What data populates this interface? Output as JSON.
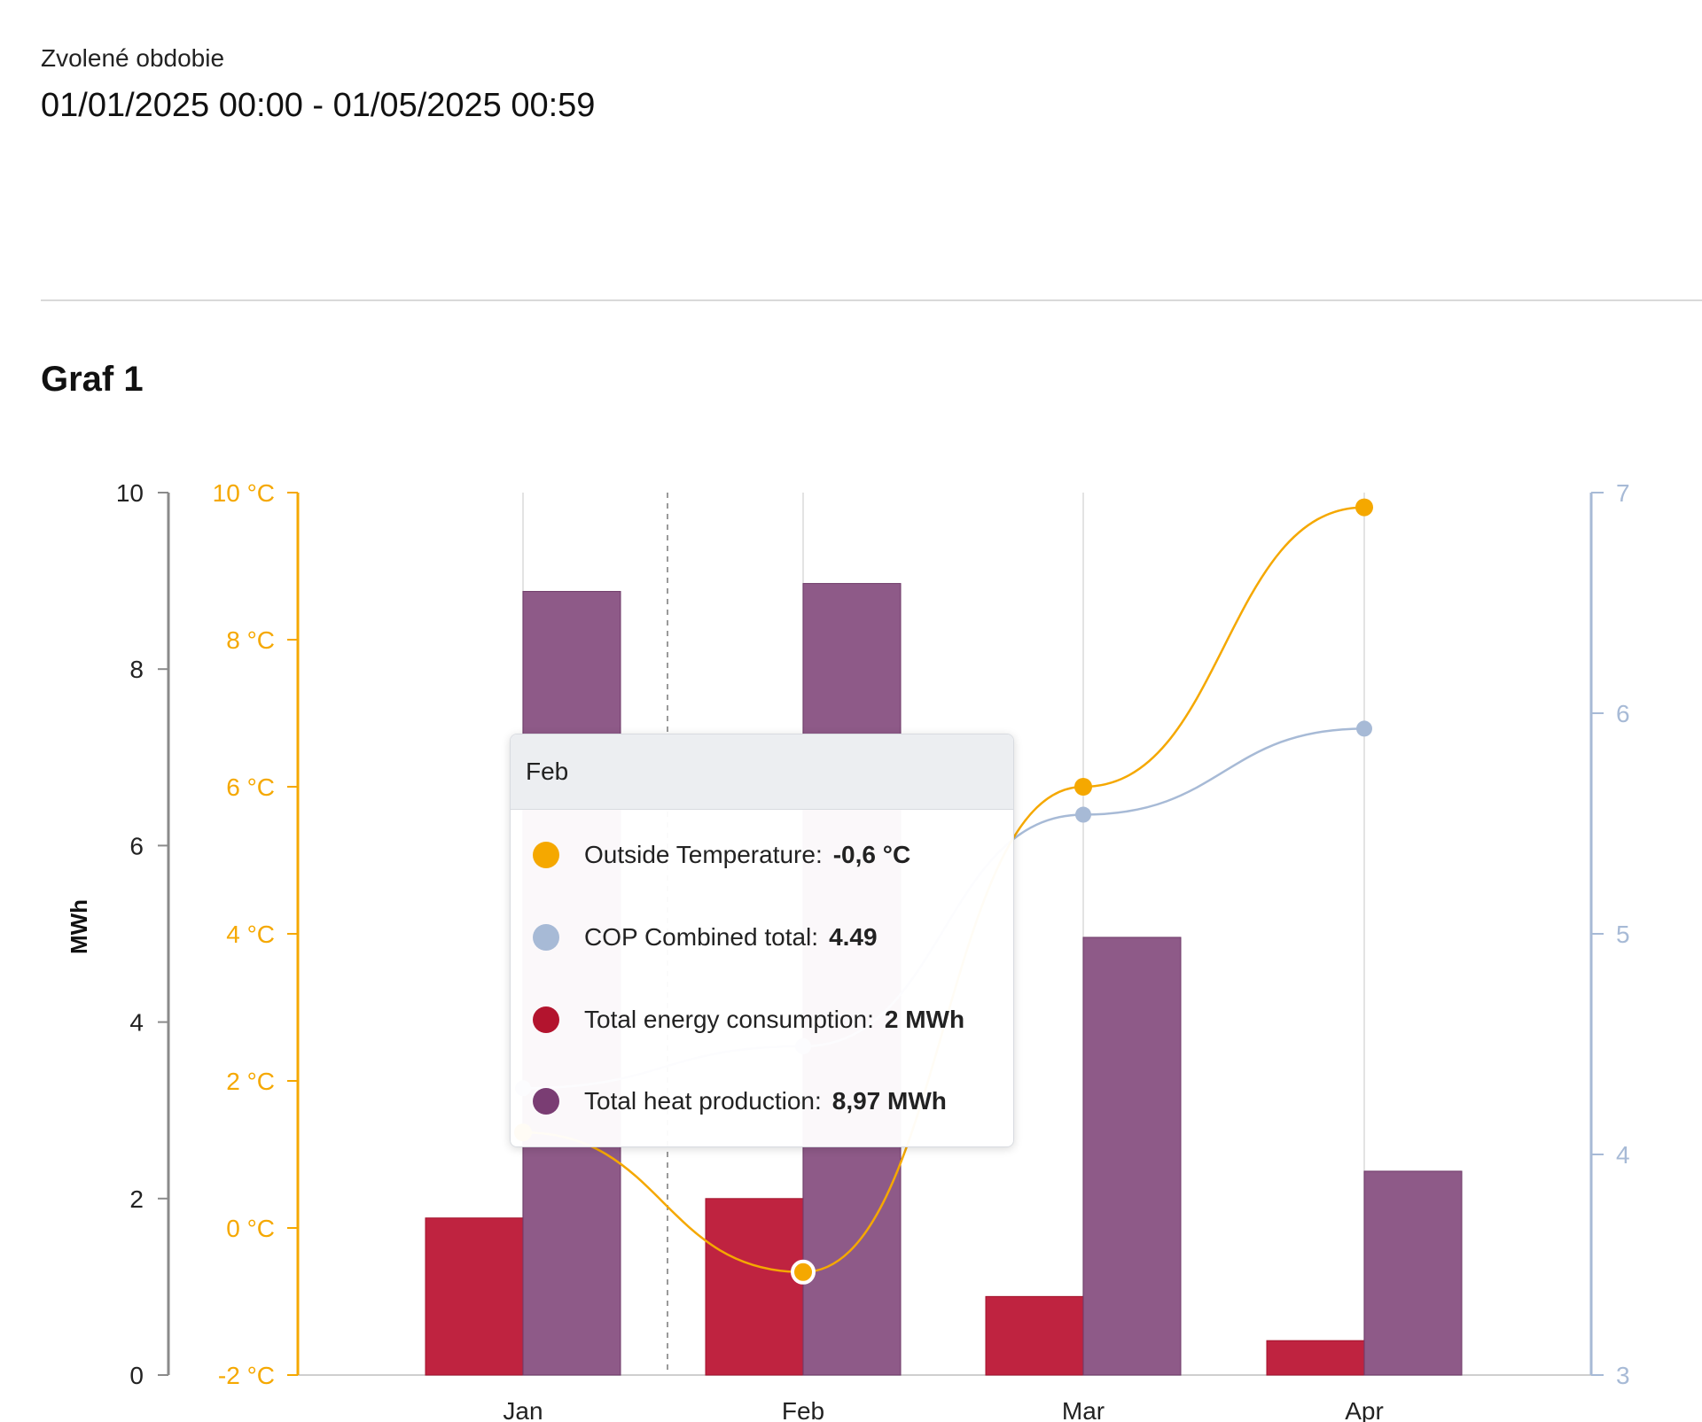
{
  "header": {
    "period_label": "Zvolené obdobie",
    "period_value": "01/01/2025 00:00 - 01/05/2025 00:59"
  },
  "graph": {
    "title": "Graf 1"
  },
  "colors": {
    "temperature": "#f5a800",
    "cop": "#a7bad6",
    "consumption": "#bf2340",
    "production": "#8e5a88",
    "mwh_axis": "#8a8a8a",
    "grid": "#e3e3e3"
  },
  "chart_data": {
    "type": "bar",
    "categories": [
      "Jan",
      "Feb",
      "Mar",
      "Apr"
    ],
    "ylabel": "MWh",
    "axes": {
      "mwh": {
        "min": 0,
        "max": 10,
        "ticks": [
          "0",
          "2",
          "4",
          "6",
          "8",
          "10"
        ],
        "tick_values": [
          0,
          2,
          4,
          6,
          8,
          10
        ]
      },
      "temperature": {
        "min": -2,
        "max": 10,
        "ticks": [
          "-2 °C",
          "0 °C",
          "2 °C",
          "4 °C",
          "6 °C",
          "8 °C",
          "10 °C"
        ],
        "tick_values": [
          -2,
          0,
          2,
          4,
          6,
          8,
          10
        ]
      },
      "cop": {
        "min": 3,
        "max": 7,
        "ticks": [
          "3",
          "4",
          "5",
          "6",
          "7"
        ],
        "tick_values": [
          3,
          4,
          5,
          6,
          7
        ]
      }
    },
    "series": [
      {
        "name": "Total energy consumption",
        "type": "bar",
        "axis": "mwh",
        "values": [
          1.78,
          2.0,
          0.89,
          0.39
        ]
      },
      {
        "name": "Total heat production",
        "type": "bar",
        "axis": "mwh",
        "values": [
          8.88,
          8.97,
          4.96,
          2.31
        ]
      },
      {
        "name": "Outside Temperature",
        "type": "line",
        "axis": "temperature",
        "values": [
          1.3,
          -0.6,
          6.0,
          9.8
        ]
      },
      {
        "name": "COP Combined total",
        "type": "line",
        "axis": "cop",
        "values": [
          4.3,
          4.49,
          5.54,
          5.93
        ]
      }
    ],
    "tooltip": {
      "title": "Feb",
      "rows": [
        {
          "label": "Outside Temperature:",
          "value": "-0,6 °C",
          "color": "#f5a800"
        },
        {
          "label": "COP Combined total:",
          "value": "4.49",
          "color": "#a7bad6"
        },
        {
          "label": "Total energy consumption:",
          "value": "2 MWh",
          "color": "#b3142e"
        },
        {
          "label": "Total heat production:",
          "value": "8,97 MWh",
          "color": "#7a3d73"
        }
      ]
    }
  }
}
